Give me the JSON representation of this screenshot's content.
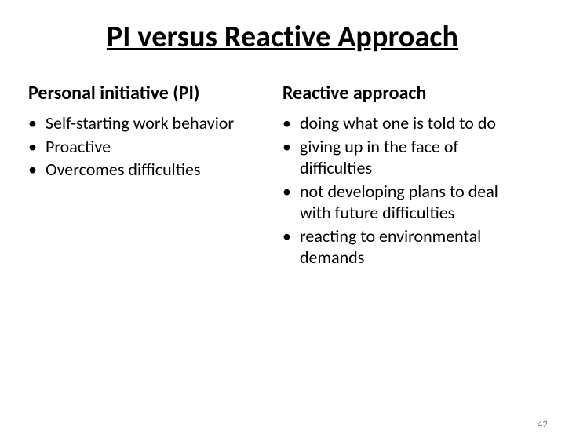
{
  "title": "PI versus Reactive Approach",
  "left": {
    "heading": "Personal initiative (PI)",
    "items": [
      "Self-starting work behavior",
      "Proactive",
      "Overcomes difficulties"
    ]
  },
  "right": {
    "heading": "Reactive approach",
    "items": [
      "doing what one is told to do",
      "giving up in the face of difficulties",
      "not developing plans to deal with future difficulties",
      "reacting to environmental demands"
    ]
  },
  "page_number": "42",
  "style": {
    "background_color": "#ffffff",
    "text_color": "#000000",
    "title_fontsize": 38,
    "subtitle_fontsize": 24,
    "body_fontsize": 22,
    "pagenum_color": "#7f7f7f",
    "bullet_char": "•"
  }
}
